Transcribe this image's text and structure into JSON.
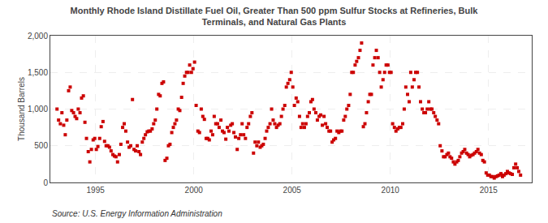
{
  "chart_data": {
    "type": "scatter",
    "title": "Monthly Rhode Island Distillate Fuel Oil, Greater Than 500 ppm Sulfur Stocks at Refineries, Bulk\nTerminals, and Natural Gas Plants",
    "ylabel": "Thousand Barrels",
    "annotations": [
      "Source: U.S. Energy Information Administration"
    ],
    "color": "#cc0000",
    "marker": "square",
    "grid": true,
    "xlim": [
      1992.7,
      2017.2
    ],
    "xticks": [
      1995,
      2000,
      2005,
      2010,
      2015
    ],
    "ylim": [
      0,
      2000
    ],
    "yticks": [
      0,
      500,
      {
        "value": 1000,
        "label": "1,000"
      },
      {
        "value": 1500,
        "label": "1,500"
      },
      {
        "value": 2000,
        "label": "2,000"
      }
    ],
    "x": [
      1993.04,
      1993.12,
      1993.21,
      1993.29,
      1993.38,
      1993.46,
      1993.54,
      1993.63,
      1993.71,
      1993.79,
      1993.88,
      1993.96,
      1994.04,
      1994.12,
      1994.21,
      1994.29,
      1994.38,
      1994.46,
      1994.54,
      1994.63,
      1994.71,
      1994.79,
      1994.88,
      1994.96,
      1995.04,
      1995.12,
      1995.21,
      1995.29,
      1995.38,
      1995.46,
      1995.54,
      1995.63,
      1995.71,
      1995.79,
      1995.88,
      1995.96,
      1996.04,
      1996.12,
      1996.21,
      1996.29,
      1996.38,
      1996.46,
      1996.54,
      1996.63,
      1996.71,
      1996.79,
      1996.88,
      1996.96,
      1997.04,
      1997.12,
      1997.21,
      1997.29,
      1997.38,
      1997.46,
      1997.54,
      1997.63,
      1997.71,
      1997.79,
      1997.88,
      1997.96,
      1998.04,
      1998.12,
      1998.21,
      1998.29,
      1998.38,
      1998.46,
      1998.54,
      1998.63,
      1998.71,
      1998.79,
      1998.88,
      1998.96,
      1999.04,
      1999.12,
      1999.21,
      1999.29,
      1999.38,
      1999.46,
      1999.54,
      1999.63,
      1999.71,
      1999.79,
      1999.88,
      1999.96,
      2000.04,
      2000.12,
      2000.21,
      2000.29,
      2000.38,
      2000.46,
      2000.54,
      2000.63,
      2000.71,
      2000.79,
      2000.88,
      2000.96,
      2001.04,
      2001.12,
      2001.21,
      2001.29,
      2001.38,
      2001.46,
      2001.54,
      2001.63,
      2001.71,
      2001.79,
      2001.88,
      2001.96,
      2002.04,
      2002.12,
      2002.21,
      2002.29,
      2002.38,
      2002.46,
      2002.54,
      2002.63,
      2002.71,
      2002.79,
      2002.88,
      2002.96,
      2003.04,
      2003.12,
      2003.21,
      2003.29,
      2003.38,
      2003.46,
      2003.54,
      2003.63,
      2003.71,
      2003.79,
      2003.88,
      2003.96,
      2004.04,
      2004.12,
      2004.21,
      2004.29,
      2004.38,
      2004.46,
      2004.54,
      2004.63,
      2004.71,
      2004.79,
      2004.88,
      2004.96,
      2005.04,
      2005.12,
      2005.21,
      2005.29,
      2005.38,
      2005.46,
      2005.54,
      2005.63,
      2005.71,
      2005.79,
      2005.88,
      2005.96,
      2006.04,
      2006.12,
      2006.21,
      2006.29,
      2006.38,
      2006.46,
      2006.54,
      2006.63,
      2006.71,
      2006.79,
      2006.88,
      2006.96,
      2007.04,
      2007.12,
      2007.21,
      2007.29,
      2007.38,
      2007.46,
      2007.54,
      2007.63,
      2007.71,
      2007.79,
      2007.88,
      2007.96,
      2008.04,
      2008.12,
      2008.21,
      2008.29,
      2008.38,
      2008.46,
      2008.54,
      2008.63,
      2008.71,
      2008.79,
      2008.88,
      2008.96,
      2009.04,
      2009.12,
      2009.21,
      2009.29,
      2009.38,
      2009.46,
      2009.54,
      2009.63,
      2009.71,
      2009.79,
      2009.88,
      2009.96,
      2010.04,
      2010.12,
      2010.21,
      2010.29,
      2010.38,
      2010.46,
      2010.54,
      2010.63,
      2010.71,
      2010.79,
      2010.88,
      2010.96,
      2011.04,
      2011.12,
      2011.21,
      2011.29,
      2011.38,
      2011.46,
      2011.54,
      2011.63,
      2011.71,
      2011.79,
      2011.88,
      2011.96,
      2012.04,
      2012.12,
      2012.21,
      2012.29,
      2012.38,
      2012.46,
      2012.54,
      2012.63,
      2012.71,
      2012.79,
      2012.88,
      2012.96,
      2013.04,
      2013.12,
      2013.21,
      2013.29,
      2013.38,
      2013.46,
      2013.54,
      2013.63,
      2013.71,
      2013.79,
      2013.88,
      2013.96,
      2014.04,
      2014.12,
      2014.21,
      2014.29,
      2014.38,
      2014.46,
      2014.54,
      2014.63,
      2014.71,
      2014.79,
      2014.88,
      2014.96,
      2015.04,
      2015.12,
      2015.21,
      2015.29,
      2015.38,
      2015.46,
      2015.54,
      2015.63,
      2015.71,
      2015.79,
      2015.88,
      2015.96,
      2016.04,
      2016.12,
      2016.21,
      2016.29,
      2016.38,
      2016.46,
      2016.54,
      2016.63
    ],
    "values": [
      1000,
      850,
      800,
      950,
      780,
      650,
      850,
      1250,
      1300,
      980,
      950,
      900,
      870,
      1000,
      950,
      1150,
      1180,
      820,
      600,
      420,
      280,
      450,
      580,
      600,
      450,
      490,
      600,
      760,
      830,
      560,
      500,
      500,
      480,
      430,
      380,
      360,
      350,
      280,
      380,
      520,
      750,
      800,
      700,
      550,
      480,
      500,
      1130,
      450,
      430,
      500,
      420,
      380,
      550,
      600,
      650,
      690,
      700,
      700,
      730,
      800,
      850,
      1000,
      1200,
      1180,
      1350,
      1370,
      300,
      330,
      500,
      520,
      680,
      750,
      800,
      850,
      1000,
      980,
      1160,
      1350,
      1450,
      1500,
      1500,
      1600,
      1500,
      1550,
      1640,
      1050,
      700,
      680,
      1000,
      900,
      860,
      600,
      600,
      580,
      700,
      650,
      900,
      800,
      800,
      750,
      850,
      700,
      680,
      590,
      750,
      700,
      780,
      800,
      680,
      620,
      450,
      600,
      650,
      800,
      650,
      600,
      750,
      800,
      900,
      950,
      400,
      550,
      500,
      550,
      480,
      500,
      520,
      600,
      700,
      750,
      800,
      1000,
      850,
      800,
      750,
      780,
      800,
      900,
      1000,
      1050,
      1300,
      1350,
      1400,
      1500,
      1300,
      1050,
      1150,
      1100,
      900,
      750,
      800,
      750,
      800,
      900,
      950,
      1100,
      1130,
      1000,
      950,
      850,
      900,
      920,
      780,
      900,
      800,
      750,
      700,
      700,
      550,
      580,
      600,
      700,
      680,
      700,
      700,
      850,
      900,
      1000,
      1050,
      1200,
      1500,
      1500,
      1600,
      1650,
      1700,
      1800,
      1900,
      760,
      800,
      950,
      1100,
      1200,
      1200,
      1600,
      1700,
      1800,
      1700,
      1500,
      1300,
      1400,
      1500,
      1600,
      1600,
      1500,
      1500,
      800,
      750,
      700,
      730,
      750,
      750,
      800,
      1000,
      1300,
      1200,
      1100,
      1500,
      1300,
      1400,
      1500,
      1500,
      1300,
      1100,
      1000,
      950,
      950,
      1000,
      1100,
      1000,
      1000,
      950,
      900,
      850,
      800,
      500,
      430,
      350,
      350,
      380,
      400,
      350,
      330,
      280,
      250,
      280,
      300,
      350,
      400,
      420,
      450,
      400,
      380,
      350,
      370,
      380,
      400,
      420,
      450,
      400,
      380,
      300,
      280,
      130,
      100,
      100,
      80,
      80,
      60,
      80,
      90,
      100,
      120,
      80,
      100,
      120,
      150,
      130,
      120,
      110,
      200,
      250,
      200,
      150,
      100
    ]
  }
}
